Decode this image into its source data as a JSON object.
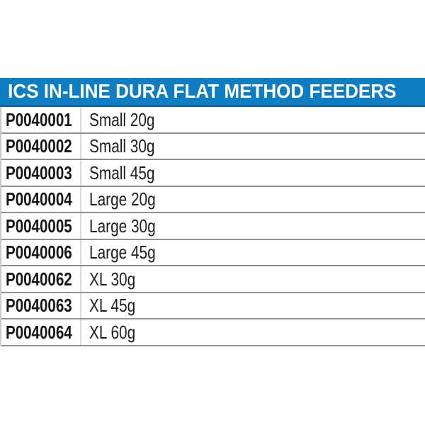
{
  "header": {
    "title": "ICS IN-LINE DURA FLAT METHOD FEEDERS",
    "bg_color": "#0e7dc2",
    "edge_color": "#0d6ca7",
    "text_color": "#ffffff"
  },
  "table": {
    "columns": [
      "product_code",
      "size"
    ],
    "rows": [
      {
        "code": "P0040001",
        "size": "Small 20g"
      },
      {
        "code": "P0040002",
        "size": "Small 30g"
      },
      {
        "code": "P0040003",
        "size": "Small 45g"
      },
      {
        "code": "P0040004",
        "size": "Large 20g"
      },
      {
        "code": "P0040005",
        "size": "Large 30g"
      },
      {
        "code": "P0040006",
        "size": "Large 45g"
      },
      {
        "code": "P0040062",
        "size": "XL 30g"
      },
      {
        "code": "P0040063",
        "size": "XL 45g"
      },
      {
        "code": "P0040064",
        "size": "XL 60g"
      }
    ]
  },
  "colors": {
    "row_separator": "#8f8f8f",
    "left_border": "#c9c9c9",
    "column_divider": "#dcdcdc",
    "code_text": "#151515",
    "size_text": "#1d1d1d",
    "background": "#ffffff"
  }
}
